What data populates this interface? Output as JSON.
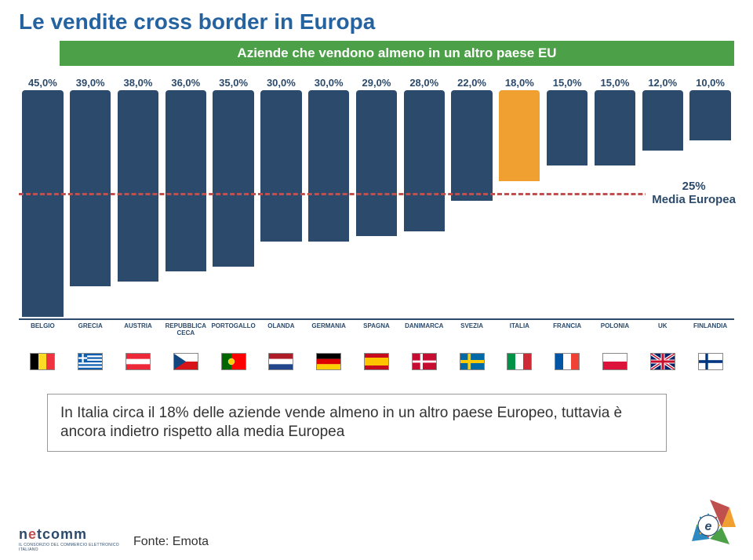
{
  "title": "Le vendite cross border in Europa",
  "subtitle": "Aziende che vendono almeno in un altro paese EU",
  "chart": {
    "type": "bar",
    "ylim": [
      0,
      48
    ],
    "median_value": 25,
    "median_label_line1": "25%",
    "median_label_line2": "Media Europea",
    "median_color": "#c0504d",
    "bar_default_color": "#2c4a6b",
    "bar_highlight_color": "#f0a030",
    "label_color": "#2c4a6b",
    "label_fontsize": 13,
    "xlabel_fontsize": 8,
    "bars": [
      {
        "label": "BELGIO",
        "value": "45,0%",
        "num": 45,
        "flag": "be"
      },
      {
        "label": "GRECIA",
        "value": "39,0%",
        "num": 39,
        "flag": "gr"
      },
      {
        "label": "AUSTRIA",
        "value": "38,0%",
        "num": 38,
        "flag": "at"
      },
      {
        "label": "REPUBBLICA CECA",
        "value": "36,0%",
        "num": 36,
        "flag": "cz"
      },
      {
        "label": "PORTOGALLO",
        "value": "35,0%",
        "num": 35,
        "flag": "pt"
      },
      {
        "label": "OLANDA",
        "value": "30,0%",
        "num": 30,
        "flag": "nl"
      },
      {
        "label": "GERMANIA",
        "value": "30,0%",
        "num": 30,
        "flag": "de"
      },
      {
        "label": "SPAGNA",
        "value": "29,0%",
        "num": 29,
        "flag": "es"
      },
      {
        "label": "DANIMARCA",
        "value": "28,0%",
        "num": 28,
        "flag": "dk"
      },
      {
        "label": "SVEZIA",
        "value": "22,0%",
        "num": 22,
        "flag": "se"
      },
      {
        "label": "ITALIA",
        "value": "18,0%",
        "num": 18,
        "flag": "it",
        "highlight": true
      },
      {
        "label": "FRANCIA",
        "value": "15,0%",
        "num": 15,
        "flag": "fr"
      },
      {
        "label": "POLONIA",
        "value": "15,0%",
        "num": 15,
        "flag": "pl"
      },
      {
        "label": "UK",
        "value": "12,0%",
        "num": 12,
        "flag": "uk"
      },
      {
        "label": "FINLANDIA",
        "value": "10,0%",
        "num": 10,
        "flag": "fi"
      }
    ]
  },
  "note": "In Italia circa il 18% delle aziende vende almeno in un altro paese Europeo, tuttavia è ancora indietro rispetto alla media Europea",
  "source": "Fonte: Emota",
  "brand": {
    "pre": "n",
    "e": "e",
    "post": "tcomm",
    "sub": "IL CONSORZIO DEL COMMERCIO ELETTRONICO ITALIANO"
  },
  "flags_svg": {
    "be": "<svg viewBox='0 0 3 2'><rect width='1' height='2' fill='#000'/><rect x='1' width='1' height='2' fill='#fdda24'/><rect x='2' width='1' height='2' fill='#ef3340'/></svg>",
    "gr": "<svg viewBox='0 0 27 18'><rect width='27' height='18' fill='#0d5eaf'/><rect y='2' width='27' height='2' fill='#fff'/><rect y='6' width='27' height='2' fill='#fff'/><rect y='10' width='27' height='2' fill='#fff'/><rect y='14' width='27' height='2' fill='#fff'/><rect width='10' height='10' fill='#0d5eaf'/><rect x='4' width='2' height='10' fill='#fff'/><rect y='4' width='10' height='2' fill='#fff'/></svg>",
    "at": "<svg viewBox='0 0 3 2'><rect width='3' height='2' fill='#ed2939'/><rect y='0.666' width='3' height='0.666' fill='#fff'/></svg>",
    "cz": "<svg viewBox='0 0 3 2'><rect width='3' height='1' fill='#fff'/><rect y='1' width='3' height='1' fill='#d7141a'/><path d='M0 0 L1.5 1 L0 2 Z' fill='#11457e'/></svg>",
    "pt": "<svg viewBox='0 0 3 2'><rect width='1.2' height='2' fill='#006600'/><rect x='1.2' width='1.8' height='2' fill='#ff0000'/><circle cx='1.2' cy='1' r='0.4' fill='#ffcc00' stroke='#fff' stroke-width='0.04'/></svg>",
    "nl": "<svg viewBox='0 0 3 2'><rect width='3' height='0.666' fill='#ae1c28'/><rect y='0.666' width='3' height='0.666' fill='#fff'/><rect y='1.333' width='3' height='0.666' fill='#21468b'/></svg>",
    "de": "<svg viewBox='0 0 3 2'><rect width='3' height='0.666' fill='#000'/><rect y='0.666' width='3' height='0.666' fill='#dd0000'/><rect y='1.333' width='3' height='0.666' fill='#ffce00'/></svg>",
    "es": "<svg viewBox='0 0 3 2'><rect width='3' height='2' fill='#c60b1e'/><rect y='0.5' width='3' height='1' fill='#ffc400'/></svg>",
    "dk": "<svg viewBox='0 0 37 28'><rect width='37' height='28' fill='#c60c30'/><rect x='12' width='4' height='28' fill='#fff'/><rect y='12' width='37' height='4' fill='#fff'/></svg>",
    "se": "<svg viewBox='0 0 16 10'><rect width='16' height='10' fill='#006aa7'/><rect x='5' width='2' height='10' fill='#fecc00'/><rect y='4' width='16' height='2' fill='#fecc00'/></svg>",
    "it": "<svg viewBox='0 0 3 2'><rect width='1' height='2' fill='#009246'/><rect x='1' width='1' height='2' fill='#fff'/><rect x='2' width='1' height='2' fill='#ce2b37'/></svg>",
    "fr": "<svg viewBox='0 0 3 2'><rect width='1' height='2' fill='#0055a4'/><rect x='1' width='1' height='2' fill='#fff'/><rect x='2' width='1' height='2' fill='#ef4135'/></svg>",
    "pl": "<svg viewBox='0 0 3 2'><rect width='3' height='1' fill='#fff'/><rect y='1' width='3' height='1' fill='#dc143c'/></svg>",
    "uk": "<svg viewBox='0 0 60 40'><rect width='60' height='40' fill='#012169'/><path d='M0 0 L60 40 M60 0 L0 40' stroke='#fff' stroke-width='8'/><path d='M0 0 L60 40 M60 0 L0 40' stroke='#c8102e' stroke-width='3'/><rect x='25' width='10' height='40' fill='#fff'/><rect y='15' width='60' height='10' fill='#fff'/><rect x='27' width='6' height='40' fill='#c8102e'/><rect y='17' width='60' height='6' fill='#c8102e'/></svg>",
    "fi": "<svg viewBox='0 0 36 22'><rect width='36' height='22' fill='#fff'/><rect x='10' width='4' height='22' fill='#003580'/><rect y='9' width='36' height='4' fill='#003580'/></svg>"
  }
}
